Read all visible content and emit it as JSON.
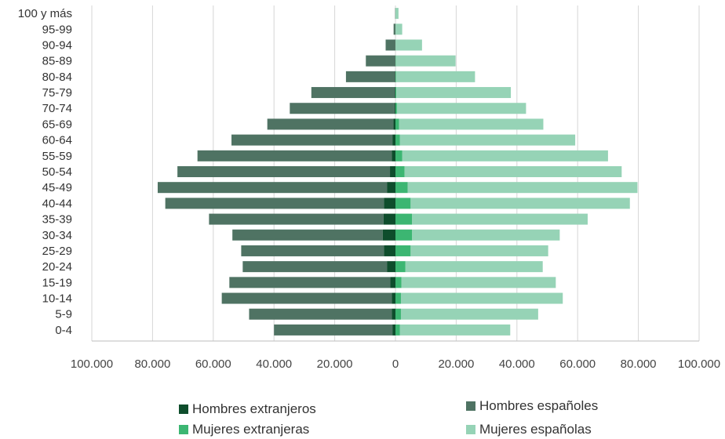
{
  "chart_data": {
    "type": "bar",
    "orientation": "horizontal-pyramid",
    "categories": [
      "0-4",
      "5-9",
      "10-14",
      "15-19",
      "20-24",
      "25-29",
      "30-34",
      "35-39",
      "40-44",
      "45-49",
      "50-54",
      "55-59",
      "60-64",
      "65-69",
      "70-74",
      "75-79",
      "80-84",
      "85-89",
      "90-94",
      "95-99",
      "100 y más"
    ],
    "series": [
      {
        "name": "Hombres extranjeros",
        "side": "left",
        "color": "#0e4d2c",
        "values": [
          1000,
          1200,
          1200,
          1700,
          2800,
          3800,
          4200,
          3900,
          3800,
          2800,
          1800,
          1200,
          1000,
          700,
          300,
          200,
          100,
          50,
          30,
          10,
          0
        ]
      },
      {
        "name": "Hombres españoles",
        "side": "left",
        "color": "#4f7363",
        "values": [
          39000,
          47000,
          56000,
          53000,
          47500,
          47000,
          49500,
          57500,
          72000,
          75500,
          70000,
          64000,
          53000,
          41500,
          34500,
          27500,
          16200,
          9700,
          3200,
          600,
          100
        ]
      },
      {
        "name": "Mujeres extranjeras",
        "side": "right",
        "color": "#3cb672",
        "values": [
          1500,
          1800,
          1800,
          2000,
          3300,
          5000,
          5500,
          5500,
          5000,
          4000,
          3000,
          2200,
          1500,
          1200,
          500,
          300,
          200,
          100,
          50,
          20,
          0
        ]
      },
      {
        "name": "Mujeres españolas",
        "side": "right",
        "color": "#96d3b6",
        "values": [
          36300,
          45200,
          53300,
          50800,
          45200,
          45300,
          48600,
          57800,
          72200,
          75700,
          71500,
          67800,
          57700,
          47500,
          42500,
          37700,
          26000,
          19700,
          8700,
          2200,
          1000
        ]
      }
    ],
    "x_tick_labels": [
      "100.000",
      "80.000",
      "60.000",
      "40.000",
      "20.000",
      "0",
      "20.000",
      "40.000",
      "60.000",
      "80.000",
      "100.000"
    ],
    "xlim": [
      -100000,
      100000
    ],
    "grid": true,
    "legend_position": "bottom"
  }
}
